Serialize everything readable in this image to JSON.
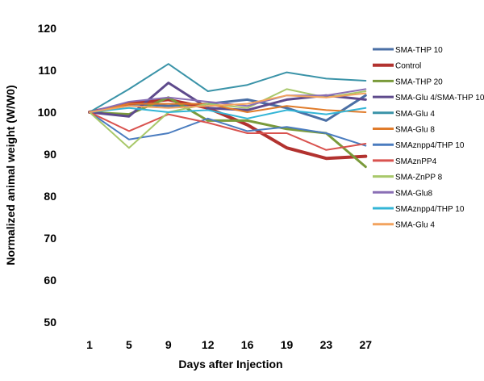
{
  "chart_data": {
    "type": "line",
    "title": "",
    "xlabel": "Days after Injection",
    "ylabel": "Normalized animal weight (W/W0)",
    "categories": [
      "1",
      "5",
      "9",
      "12",
      "16",
      "19",
      "23",
      "27"
    ],
    "ylim": [
      50,
      120
    ],
    "yticks": [
      50,
      60,
      70,
      80,
      90,
      100,
      110,
      120
    ],
    "grid": false,
    "legend_position": "right",
    "series": [
      {
        "name": "SMA-THP 10",
        "color": "#4a6fa5",
        "width": 3,
        "values": [
          100,
          102,
          101.5,
          102,
          103,
          101,
          98,
          104
        ]
      },
      {
        "name": "Control",
        "color": "#b2322f",
        "width": 4,
        "values": [
          100,
          102,
          103,
          101,
          97,
          91.5,
          89,
          89.5
        ]
      },
      {
        "name": "SMA-THP 20",
        "color": "#7a9a3a",
        "width": 3,
        "values": [
          100,
          99.5,
          103.5,
          98,
          98,
          96,
          95,
          87
        ]
      },
      {
        "name": "SMA-Glu 4/SMA-THP 10",
        "color": "#5e4a8c",
        "width": 3,
        "values": [
          100,
          99,
          107,
          101,
          100.5,
          103,
          104,
          103
        ]
      },
      {
        "name": "SMA-Glu 4",
        "color": "#3a93a8",
        "width": 2,
        "values": [
          100,
          105.5,
          111.5,
          105,
          106.5,
          109.5,
          108,
          107.5
        ]
      },
      {
        "name": "SMA-Glu 8",
        "color": "#e07b2a",
        "width": 2,
        "values": [
          100,
          102,
          102,
          102,
          100,
          101.5,
          100.5,
          100
        ]
      },
      {
        "name": "SMAznpp4/THP 10",
        "color": "#4a7cbf",
        "width": 2,
        "values": [
          100,
          93.5,
          95,
          98.5,
          95.5,
          96.5,
          95,
          92
        ]
      },
      {
        "name": "SMAznPP4",
        "color": "#d9534f",
        "width": 2,
        "values": [
          100,
          95.5,
          99.5,
          97.5,
          95,
          95,
          91,
          92.5
        ]
      },
      {
        "name": "SMA-ZnPP 8",
        "color": "#a8c86a",
        "width": 2,
        "values": [
          100,
          91.5,
          100,
          102,
          101,
          105.5,
          103.5,
          105
        ]
      },
      {
        "name": "SMA-Glu8",
        "color": "#8a6fb5",
        "width": 2,
        "values": [
          100,
          102.5,
          103.5,
          102.5,
          101.5,
          104,
          104,
          105.5
        ]
      },
      {
        "name": "SMAznpp4/THP 10",
        "color": "#33b5d6",
        "width": 2,
        "values": [
          100,
          101,
          100,
          100.5,
          98.5,
          100.5,
          99.5,
          101
        ]
      },
      {
        "name": "SMA-Glu 4",
        "color": "#f2a35e",
        "width": 2,
        "values": [
          100,
          101.5,
          101,
          101.5,
          102,
          104,
          103.5,
          104.5
        ]
      }
    ]
  }
}
